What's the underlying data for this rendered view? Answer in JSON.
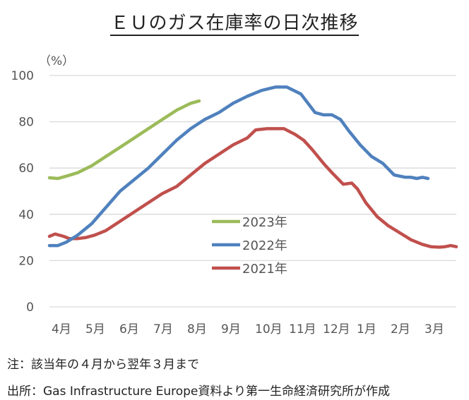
{
  "title": "ＥＵのガス在庫率の日次推移",
  "notes": {
    "note1": "注：該当年の４月から翌年３月まで",
    "source": "出所：Gas Infrastructure Europe資料より第一生命経済研究所が作成"
  },
  "chart_data": {
    "type": "line",
    "title": "ＥＵのガス在庫率の日次推移",
    "unit_label": "（%）",
    "ylim": [
      0,
      100
    ],
    "yticks": [
      0,
      20,
      40,
      60,
      80,
      100
    ],
    "categories": [
      "4月",
      "5月",
      "6月",
      "7月",
      "8月",
      "9月",
      "10月",
      "11月",
      "12月",
      "1月",
      "2月",
      "3月"
    ],
    "grid": true,
    "legend_position": "center",
    "series": [
      {
        "name": "2023年",
        "color": "#9bbb59",
        "points": [
          [
            0,
            55.8
          ],
          [
            0.3,
            55.5
          ],
          [
            0.6,
            56.5
          ],
          [
            1,
            58
          ],
          [
            1.5,
            61
          ],
          [
            2,
            65
          ],
          [
            2.5,
            69
          ],
          [
            3,
            73
          ],
          [
            3.5,
            77
          ],
          [
            4,
            81
          ],
          [
            4.5,
            85
          ],
          [
            5,
            88
          ],
          [
            5.3,
            89
          ]
        ]
      },
      {
        "name": "2022年",
        "color": "#4f81bd",
        "points": [
          [
            0,
            26.5
          ],
          [
            0.3,
            26.5
          ],
          [
            0.6,
            28
          ],
          [
            1,
            31
          ],
          [
            1.5,
            36
          ],
          [
            2,
            43
          ],
          [
            2.5,
            50
          ],
          [
            3,
            55
          ],
          [
            3.5,
            60
          ],
          [
            4,
            66
          ],
          [
            4.5,
            72
          ],
          [
            5,
            77
          ],
          [
            5.5,
            81
          ],
          [
            6,
            84
          ],
          [
            6.5,
            88
          ],
          [
            7,
            91
          ],
          [
            7.5,
            93.5
          ],
          [
            8,
            95
          ],
          [
            8.4,
            95
          ],
          [
            8.9,
            92
          ],
          [
            9.4,
            84
          ],
          [
            9.7,
            83
          ],
          [
            10,
            83
          ],
          [
            10.3,
            81
          ],
          [
            10.6,
            76
          ],
          [
            11,
            70
          ],
          [
            11.4,
            65
          ],
          [
            11.8,
            62
          ],
          [
            12.2,
            57
          ],
          [
            12.6,
            56
          ],
          [
            12.8,
            56
          ],
          [
            13,
            55.5
          ],
          [
            13.2,
            56
          ],
          [
            13.4,
            55.5
          ]
        ]
      },
      {
        "name": "2021年",
        "color": "#c0504d",
        "points": [
          [
            0,
            30.5
          ],
          [
            0.2,
            31.5
          ],
          [
            0.5,
            30.5
          ],
          [
            0.7,
            29.5
          ],
          [
            1,
            29.5
          ],
          [
            1.3,
            30
          ],
          [
            1.6,
            31
          ],
          [
            2,
            33
          ],
          [
            2.5,
            37
          ],
          [
            3,
            41
          ],
          [
            3.5,
            45
          ],
          [
            4,
            49
          ],
          [
            4.5,
            52
          ],
          [
            5,
            57
          ],
          [
            5.5,
            62
          ],
          [
            6,
            66
          ],
          [
            6.5,
            70
          ],
          [
            7,
            73
          ],
          [
            7.3,
            76.5
          ],
          [
            7.7,
            77
          ],
          [
            8.3,
            77
          ],
          [
            8.7,
            74.5
          ],
          [
            9,
            72
          ],
          [
            9.3,
            68
          ],
          [
            9.7,
            62
          ],
          [
            10,
            58
          ],
          [
            10.4,
            53
          ],
          [
            10.7,
            53.5
          ],
          [
            10.9,
            51
          ],
          [
            11.2,
            45
          ],
          [
            11.6,
            39
          ],
          [
            12,
            35
          ],
          [
            12.4,
            32
          ],
          [
            12.8,
            29
          ],
          [
            13.2,
            27
          ],
          [
            13.5,
            26
          ],
          [
            13.8,
            25.8
          ],
          [
            14,
            26
          ],
          [
            14.2,
            26.5
          ],
          [
            14.4,
            26
          ]
        ]
      }
    ]
  }
}
